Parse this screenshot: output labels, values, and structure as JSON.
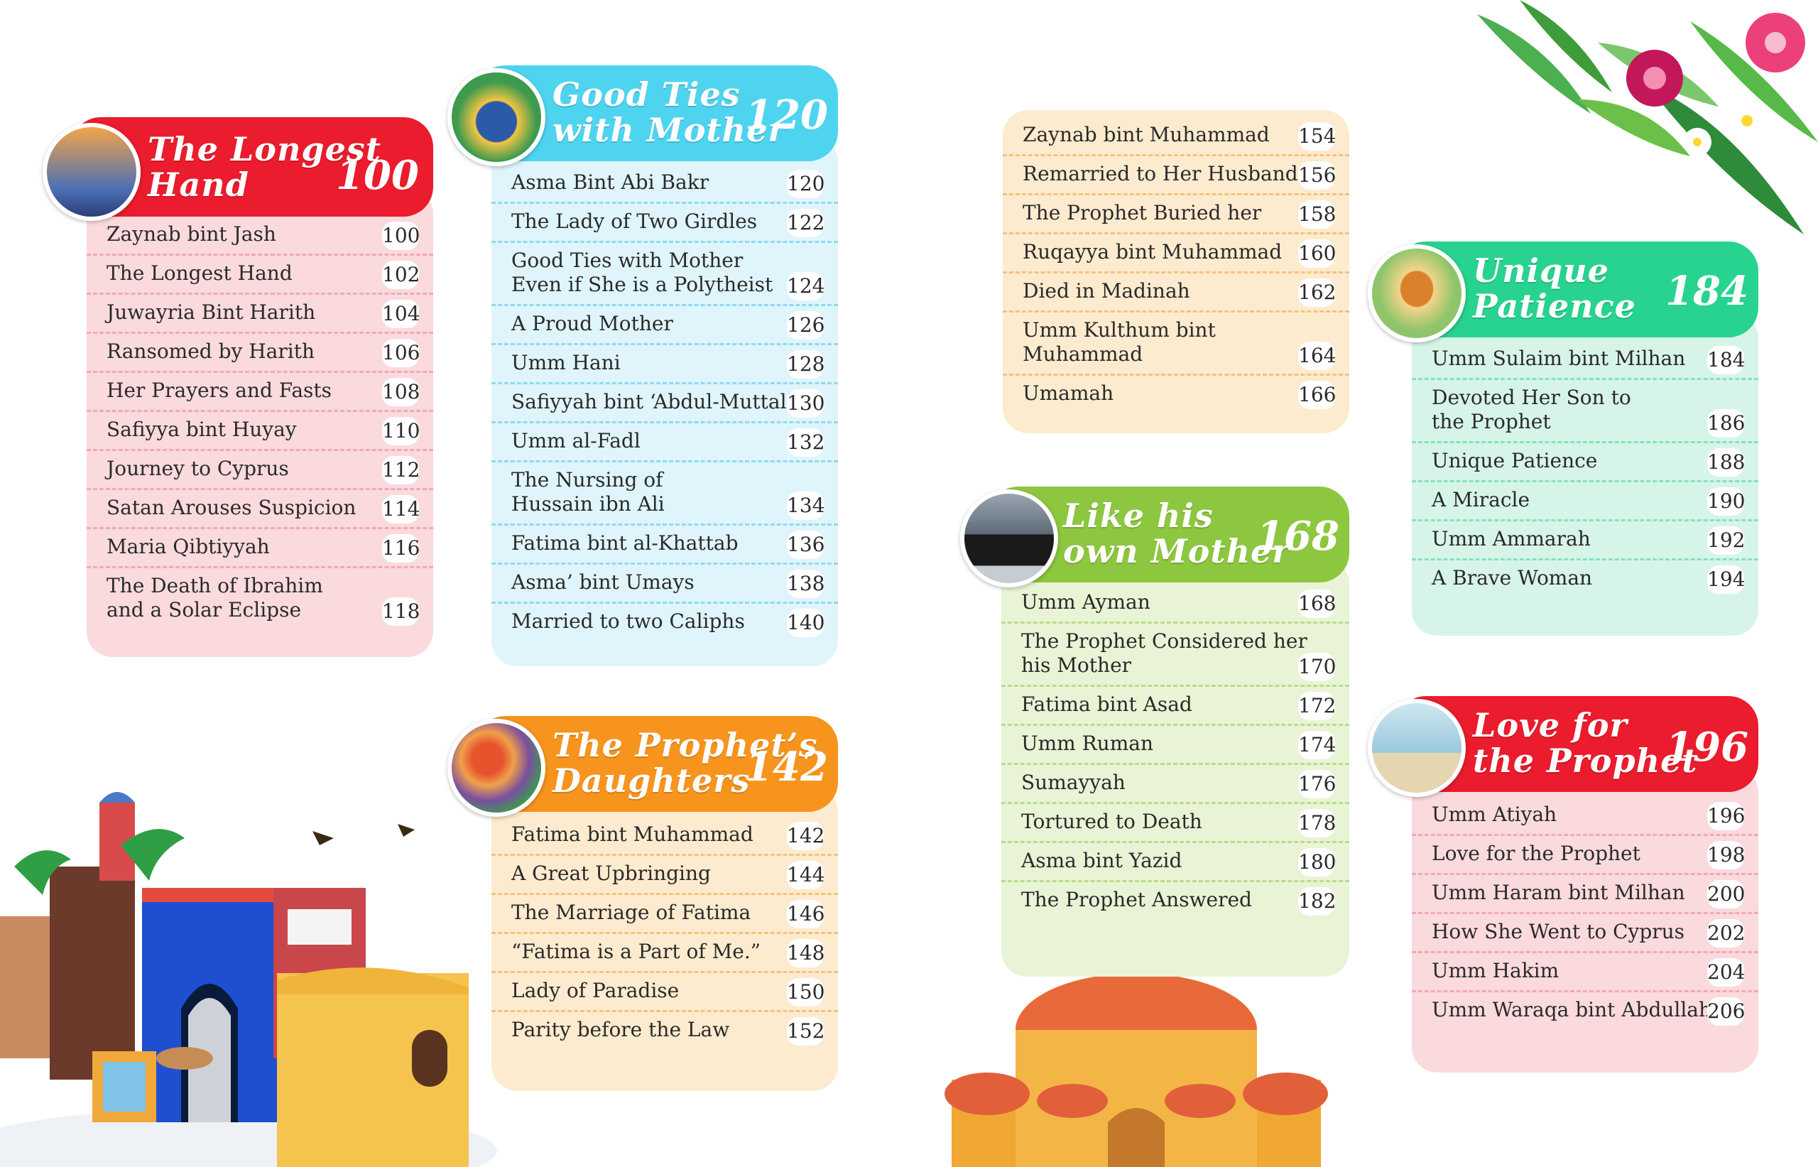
{
  "sections": [
    {
      "title": [
        "The Longest",
        "Hand"
      ],
      "page": "100",
      "colors": {
        "header": "#ea1c2d",
        "body": "#fadadd",
        "dash": "#f2a9b3"
      },
      "thumb": "mosque",
      "items": [
        [
          "Zaynab bint Jash",
          "100"
        ],
        [
          "The Longest Hand",
          "102"
        ],
        [
          "Juwayria Bint Harith",
          "104"
        ],
        [
          "Ransomed by Harith",
          "106"
        ],
        [
          "Her Prayers and Fasts",
          "108"
        ],
        [
          "Safiyya bint Huyay",
          "110"
        ],
        [
          "Journey to Cyprus",
          "112"
        ],
        [
          "Satan Arouses Suspicion",
          "114"
        ],
        [
          "Maria Qibtiyyah",
          "116"
        ],
        [
          "The Death of Ibrahim\nand a Solar Eclipse",
          "118"
        ]
      ]
    },
    {
      "title": [
        "Good Ties",
        "with Mother"
      ],
      "page": "120",
      "colors": {
        "header": "#4fd4f0",
        "body": "#dff5fb",
        "dash": "#8fdbee"
      },
      "thumb": "bags",
      "items": [
        [
          "Asma Bint Abi Bakr",
          "120"
        ],
        [
          "The Lady of Two Girdles",
          "122"
        ],
        [
          "Good Ties with Mother\nEven if She is a Polytheist",
          "124"
        ],
        [
          "A Proud Mother",
          "126"
        ],
        [
          "Umm Hani",
          "128"
        ],
        [
          "Safiyyah bint ‘Abdul-Muttalib",
          "130"
        ],
        [
          "Umm al-Fadl",
          "132"
        ],
        [
          "The Nursing of\nHussain ibn Ali",
          "134"
        ],
        [
          "Fatima bint al-Khattab",
          "136"
        ],
        [
          "Asma’ bint Umays",
          "138"
        ],
        [
          "Married to two Caliphs",
          "140"
        ]
      ]
    },
    {
      "title": [
        "The Prophet’s",
        "Daughters"
      ],
      "page": "142",
      "colors": {
        "header": "#f7941d",
        "body": "#fdebcf",
        "dash": "#f6c27a"
      },
      "thumb": "flowers",
      "items": [
        [
          "Fatima bint Muhammad",
          "142"
        ],
        [
          "A Great Upbringing",
          "144"
        ],
        [
          "The Marriage of Fatima",
          "146"
        ],
        [
          "“Fatima is a Part of Me.”",
          "148"
        ],
        [
          "Lady of Paradise",
          "150"
        ],
        [
          "Parity before the Law",
          "152"
        ]
      ]
    },
    {
      "title": [],
      "page": "",
      "colors": {
        "header": "#fdebcf",
        "body": "#fdebcf",
        "dash": "#f6c27a"
      },
      "thumb": "",
      "items": [
        [
          "Zaynab bint Muhammad",
          "154"
        ],
        [
          "Remarried to Her Husband",
          "156"
        ],
        [
          "The Prophet Buried her",
          "158"
        ],
        [
          "Ruqayya bint Muhammad",
          "160"
        ],
        [
          "Died in Madinah",
          "162"
        ],
        [
          "Umm Kulthum bint\nMuhammad",
          "164"
        ],
        [
          "Umamah",
          "166"
        ]
      ]
    },
    {
      "title": [
        "Like his",
        "own Mother"
      ],
      "page": "168",
      "colors": {
        "header": "#8dc63f",
        "body": "#e9f4d6",
        "dash": "#b9dc88"
      },
      "thumb": "kaaba",
      "items": [
        [
          "Umm Ayman",
          "168"
        ],
        [
          "The Prophet Considered her\nhis Mother",
          "170"
        ],
        [
          "Fatima bint Asad",
          "172"
        ],
        [
          "Umm Ruman",
          "174"
        ],
        [
          "Sumayyah",
          "176"
        ],
        [
          "Tortured to Death",
          "178"
        ],
        [
          "Asma bint Yazid",
          "180"
        ],
        [
          "The Prophet Answered",
          "182"
        ]
      ]
    },
    {
      "title": [
        "Unique",
        "Patience"
      ],
      "page": "184",
      "colors": {
        "header": "#27d38f",
        "body": "#d7f4e8",
        "dash": "#86e2bd"
      },
      "thumb": "bread",
      "items": [
        [
          "Umm Sulaim bint Milhan",
          "184"
        ],
        [
          "Devoted Her Son to\nthe Prophet",
          "186"
        ],
        [
          "Unique Patience",
          "188"
        ],
        [
          "A Miracle",
          "190"
        ],
        [
          "Umm Ammarah",
          "192"
        ],
        [
          "A Brave Woman",
          "194"
        ]
      ]
    },
    {
      "title": [
        "Love for",
        "the Prophet"
      ],
      "page": "196",
      "colors": {
        "header": "#ea1c2d",
        "body": "#fadadd",
        "dash": "#f2a9b3"
      },
      "thumb": "boat",
      "items": [
        [
          "Umm Atiyah",
          "196"
        ],
        [
          "Love for the Prophet",
          "198"
        ],
        [
          "Umm Haram bint Milhan",
          "200"
        ],
        [
          "How She Went to Cyprus",
          "202"
        ],
        [
          "Umm Hakim",
          "204"
        ],
        [
          "Umm Waraqa bint Abdullah",
          "206"
        ]
      ]
    }
  ]
}
